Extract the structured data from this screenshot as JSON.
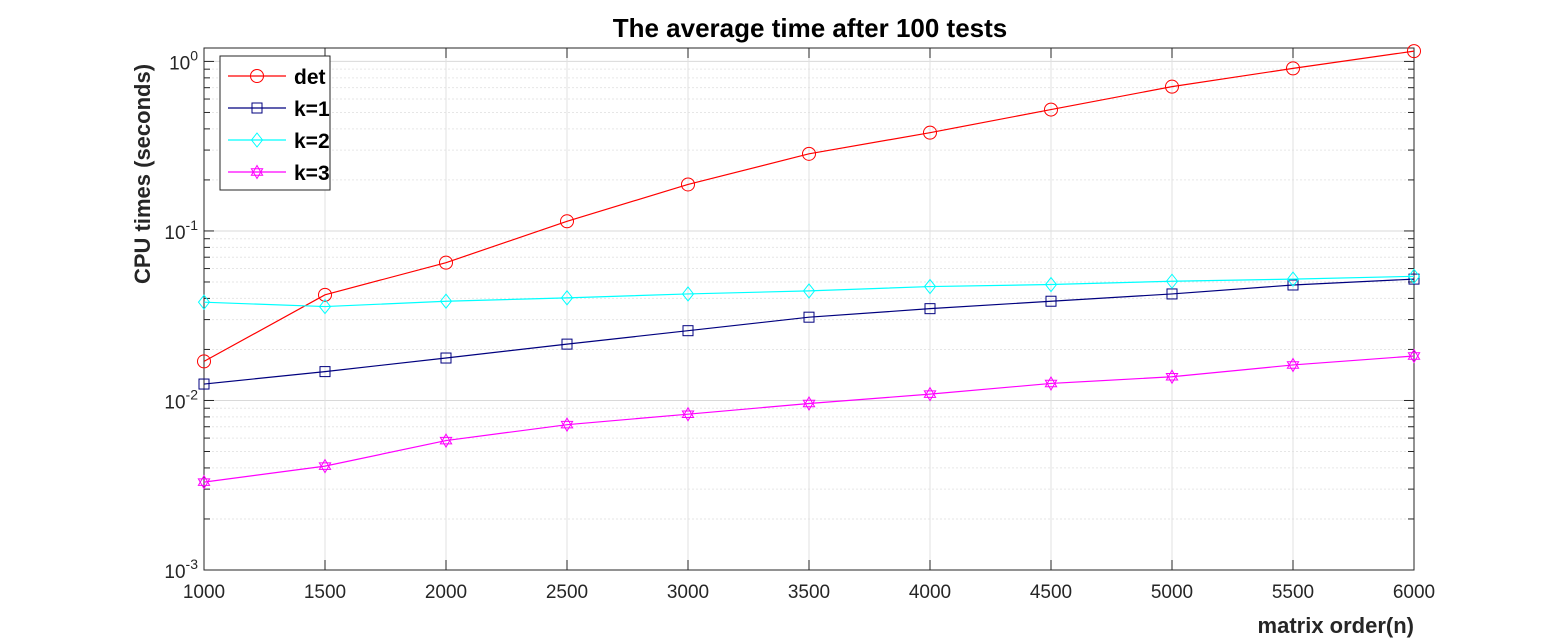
{
  "chart_data": {
    "type": "line",
    "title": "The average time after 100 tests",
    "xlabel": "matrix order(n)",
    "ylabel": "CPU times (seconds)",
    "yscale": "log",
    "xlim": [
      1000,
      6000
    ],
    "ylim": [
      0.001,
      1.2
    ],
    "grid": true,
    "legend_position": "top-left",
    "x": [
      1000,
      1500,
      2000,
      2500,
      3000,
      3500,
      4000,
      4500,
      5000,
      5500,
      6000
    ],
    "x_ticks": [
      "1000",
      "1500",
      "2000",
      "2500",
      "3000",
      "3500",
      "4000",
      "4500",
      "5000",
      "5500",
      "6000"
    ],
    "y_ticks": [
      {
        "base": "10",
        "exp": "-3",
        "value": 0.001
      },
      {
        "base": "10",
        "exp": "-2",
        "value": 0.01
      },
      {
        "base": "10",
        "exp": "-1",
        "value": 0.1
      },
      {
        "base": "10",
        "exp": "0",
        "value": 1
      }
    ],
    "series": [
      {
        "name": "det",
        "color": "#ff0000",
        "marker": "circle",
        "values": [
          0.017,
          0.042,
          0.065,
          0.114,
          0.188,
          0.285,
          0.38,
          0.52,
          0.71,
          0.91,
          1.15
        ]
      },
      {
        "name": "k=1",
        "color": "#00007f",
        "marker": "square",
        "values": [
          0.0125,
          0.0148,
          0.0178,
          0.0215,
          0.0258,
          0.031,
          0.0348,
          0.0385,
          0.0425,
          0.048,
          0.052
        ]
      },
      {
        "name": "k=2",
        "color": "#00ffff",
        "marker": "diamond",
        "values": [
          0.038,
          0.0358,
          0.0385,
          0.0403,
          0.0425,
          0.0443,
          0.047,
          0.0483,
          0.0505,
          0.052,
          0.054
        ]
      },
      {
        "name": "k=3",
        "color": "#ff00ff",
        "marker": "hexagram",
        "values": [
          0.0033,
          0.0041,
          0.0058,
          0.0072,
          0.0083,
          0.0096,
          0.0109,
          0.0126,
          0.0138,
          0.0162,
          0.0183
        ]
      }
    ]
  }
}
